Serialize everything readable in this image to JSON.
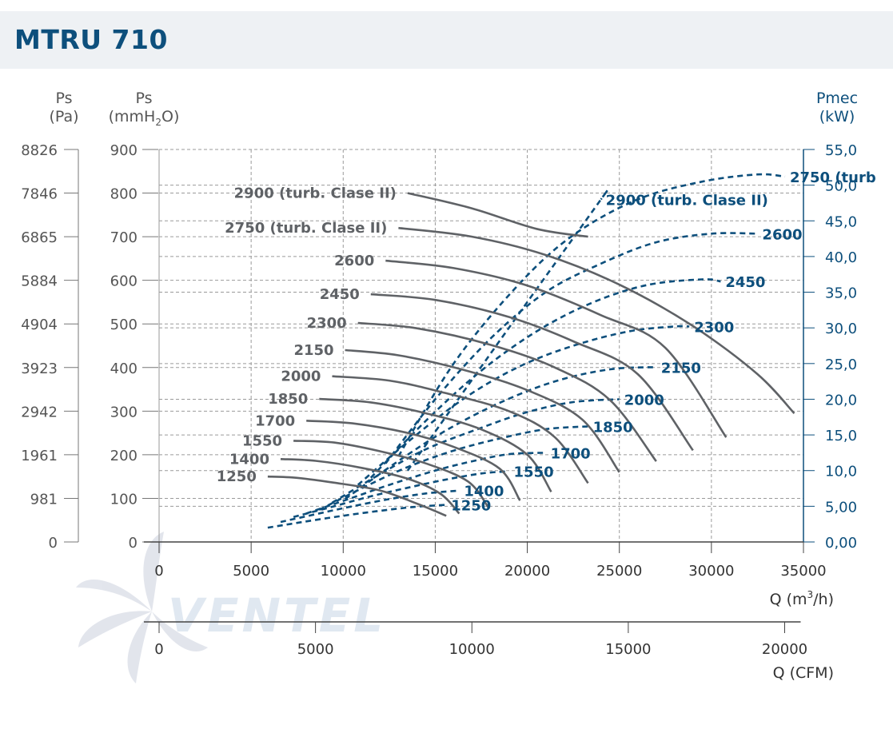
{
  "title": "MTRU 710",
  "colors": {
    "accent": "#0d4f7c",
    "curve": "#5f6266",
    "grid": "#9a9a9a",
    "title_bg": "#eef1f4"
  },
  "axes": {
    "left_pa": {
      "title": "Ps",
      "unit": "(Pa)",
      "ticks": [
        "8826",
        "7846",
        "6865",
        "5884",
        "4904",
        "3923",
        "2942",
        "1961",
        "981",
        "0"
      ]
    },
    "left_mm": {
      "title": "Ps",
      "unit_main": "(mmH",
      "unit_sub": "2",
      "unit_end": "O)",
      "ticks": [
        "900",
        "800",
        "700",
        "600",
        "500",
        "400",
        "300",
        "200",
        "100",
        "0"
      ]
    },
    "right_kw": {
      "title": "Pmec",
      "unit": "(kW)",
      "ticks": [
        "55,0",
        "50,0",
        "45,0",
        "40,0",
        "35,0",
        "30,0",
        "25,0",
        "20,0",
        "15,0",
        "10,0",
        "5,00",
        "0,00"
      ]
    },
    "x_m3h": {
      "label_main": "Q (m",
      "label_sup": "3",
      "label_end": "/h)",
      "ticks": [
        "0",
        "5000",
        "10000",
        "15000",
        "20000",
        "25000",
        "30000",
        "35000"
      ]
    },
    "x_cfm": {
      "label": "Q (CFM)",
      "ticks": [
        "0",
        "5000",
        "10000",
        "15000",
        "20000"
      ]
    }
  },
  "watermark": "VENTEL",
  "chart_data": {
    "type": "line",
    "xlabel": "Q (m3/h)",
    "ylabel": "Ps (mmH2O)",
    "y2label": "Pmec (kW)",
    "xlim": [
      0,
      35000
    ],
    "ylim": [
      0,
      900
    ],
    "y2lim": [
      0,
      55
    ],
    "pressure_series": [
      {
        "name": "2900 (turb. Clase II)",
        "points": [
          [
            13500,
            800
          ],
          [
            17000,
            765
          ],
          [
            20500,
            718
          ],
          [
            23300,
            700
          ]
        ]
      },
      {
        "name": "2750 (turb. Clase II)",
        "points": [
          [
            13000,
            720
          ],
          [
            17000,
            700
          ],
          [
            21000,
            658
          ],
          [
            25000,
            590
          ],
          [
            29000,
            495
          ],
          [
            32500,
            385
          ],
          [
            34500,
            295
          ]
        ]
      },
      {
        "name": "2600",
        "points": [
          [
            12300,
            645
          ],
          [
            16000,
            628
          ],
          [
            20000,
            588
          ],
          [
            24000,
            520
          ],
          [
            27500,
            445
          ],
          [
            30800,
            240
          ]
        ]
      },
      {
        "name": "2450",
        "points": [
          [
            11500,
            568
          ],
          [
            15000,
            555
          ],
          [
            19000,
            516
          ],
          [
            22500,
            460
          ],
          [
            26000,
            385
          ],
          [
            29000,
            210
          ]
        ]
      },
      {
        "name": "2300",
        "points": [
          [
            10800,
            502
          ],
          [
            14000,
            490
          ],
          [
            18000,
            452
          ],
          [
            21500,
            400
          ],
          [
            24500,
            325
          ],
          [
            27000,
            185
          ]
        ]
      },
      {
        "name": "2150",
        "points": [
          [
            10100,
            440
          ],
          [
            13000,
            428
          ],
          [
            16500,
            395
          ],
          [
            20000,
            348
          ],
          [
            23000,
            280
          ],
          [
            25000,
            160
          ]
        ]
      },
      {
        "name": "2000",
        "points": [
          [
            9400,
            380
          ],
          [
            12500,
            370
          ],
          [
            15500,
            342
          ],
          [
            19000,
            300
          ],
          [
            21500,
            240
          ],
          [
            23300,
            135
          ]
        ]
      },
      {
        "name": "1850",
        "points": [
          [
            8700,
            328
          ],
          [
            11500,
            320
          ],
          [
            14500,
            295
          ],
          [
            17500,
            258
          ],
          [
            20000,
            200
          ],
          [
            21300,
            115
          ]
        ]
      },
      {
        "name": "1700",
        "points": [
          [
            8000,
            278
          ],
          [
            10500,
            272
          ],
          [
            13500,
            250
          ],
          [
            16000,
            218
          ],
          [
            18500,
            168
          ],
          [
            19600,
            95
          ]
        ]
      },
      {
        "name": "1550",
        "points": [
          [
            7300,
            232
          ],
          [
            9500,
            228
          ],
          [
            12000,
            208
          ],
          [
            14500,
            180
          ],
          [
            16800,
            138
          ],
          [
            17900,
            78
          ]
        ]
      },
      {
        "name": "1400",
        "points": [
          [
            6600,
            190
          ],
          [
            8500,
            186
          ],
          [
            11000,
            170
          ],
          [
            13500,
            145
          ],
          [
            15300,
            110
          ],
          [
            16300,
            65
          ]
        ]
      },
      {
        "name": "1250",
        "points": [
          [
            5900,
            150
          ],
          [
            7500,
            147
          ],
          [
            9500,
            136
          ],
          [
            12000,
            118
          ],
          [
            14000,
            88
          ],
          [
            15600,
            60
          ]
        ]
      }
    ],
    "power_series": [
      {
        "name": "2900 (turb. Clase II)",
        "label_text": "2900 (turb. Clase II)",
        "points": [
          [
            13500,
            10
          ],
          [
            19000,
            30
          ],
          [
            24000,
            48
          ],
          [
            24000,
            48
          ]
        ]
      },
      {
        "name": "2750 (turb. Clase II)",
        "label_text": "2750 (turb",
        "points": [
          [
            13000,
            12
          ],
          [
            16000,
            25
          ],
          [
            19500,
            36
          ],
          [
            22500,
            43
          ],
          [
            26000,
            48
          ],
          [
            29500,
            50.5
          ],
          [
            32500,
            51.5
          ],
          [
            34000,
            51.2
          ]
        ]
      },
      {
        "name": "2600",
        "points": [
          [
            12300,
            11
          ],
          [
            15000,
            20
          ],
          [
            18000,
            28.5
          ],
          [
            21000,
            35
          ],
          [
            24000,
            39
          ],
          [
            27000,
            42
          ],
          [
            30000,
            43.2
          ],
          [
            32500,
            43.2
          ]
        ]
      },
      {
        "name": "2450",
        "points": [
          [
            11500,
            9
          ],
          [
            14500,
            17
          ],
          [
            17500,
            24
          ],
          [
            20500,
            29.5
          ],
          [
            23500,
            33.5
          ],
          [
            26500,
            36
          ],
          [
            29500,
            36.8
          ],
          [
            30500,
            36.5
          ]
        ]
      },
      {
        "name": "2300",
        "points": [
          [
            10800,
            8
          ],
          [
            13500,
            14
          ],
          [
            16500,
            20
          ],
          [
            19500,
            24.5
          ],
          [
            22500,
            27.5
          ],
          [
            25500,
            29.5
          ],
          [
            28000,
            30.2
          ],
          [
            28800,
            30.2
          ]
        ]
      },
      {
        "name": "2150",
        "points": [
          [
            10100,
            6
          ],
          [
            12800,
            11
          ],
          [
            15500,
            15.5
          ],
          [
            18500,
            19.5
          ],
          [
            21500,
            22.5
          ],
          [
            24500,
            24.2
          ],
          [
            27000,
            24.5
          ]
        ]
      },
      {
        "name": "2000",
        "points": [
          [
            9400,
            5.5
          ],
          [
            12000,
            9.5
          ],
          [
            14500,
            13
          ],
          [
            17500,
            16
          ],
          [
            20000,
            18.2
          ],
          [
            22500,
            19.6
          ],
          [
            25000,
            20
          ]
        ]
      },
      {
        "name": "1850",
        "points": [
          [
            8700,
            4.5
          ],
          [
            11000,
            7.5
          ],
          [
            13500,
            10.5
          ],
          [
            16000,
            12.8
          ],
          [
            18500,
            14.5
          ],
          [
            21000,
            15.8
          ],
          [
            23300,
            16.2
          ]
        ]
      },
      {
        "name": "1700",
        "points": [
          [
            8000,
            4
          ],
          [
            10500,
            6.2
          ],
          [
            12500,
            8
          ],
          [
            15000,
            10
          ],
          [
            17000,
            11.3
          ],
          [
            19000,
            12.3
          ],
          [
            21000,
            12.5
          ]
        ]
      },
      {
        "name": "1550",
        "points": [
          [
            7300,
            3.5
          ],
          [
            9500,
            5
          ],
          [
            11500,
            6.4
          ],
          [
            13500,
            7.6
          ],
          [
            15500,
            8.7
          ],
          [
            17500,
            9.6
          ],
          [
            19000,
            9.9
          ]
        ]
      },
      {
        "name": "1400",
        "points": [
          [
            6600,
            2.8
          ],
          [
            8700,
            4
          ],
          [
            10500,
            5
          ],
          [
            12500,
            6
          ],
          [
            14500,
            6.8
          ],
          [
            16300,
            7.2
          ]
        ]
      },
      {
        "name": "1250",
        "points": [
          [
            5900,
            2
          ],
          [
            7800,
            2.8
          ],
          [
            9800,
            3.6
          ],
          [
            11800,
            4.3
          ],
          [
            13800,
            4.9
          ],
          [
            15600,
            5.2
          ]
        ]
      }
    ]
  }
}
